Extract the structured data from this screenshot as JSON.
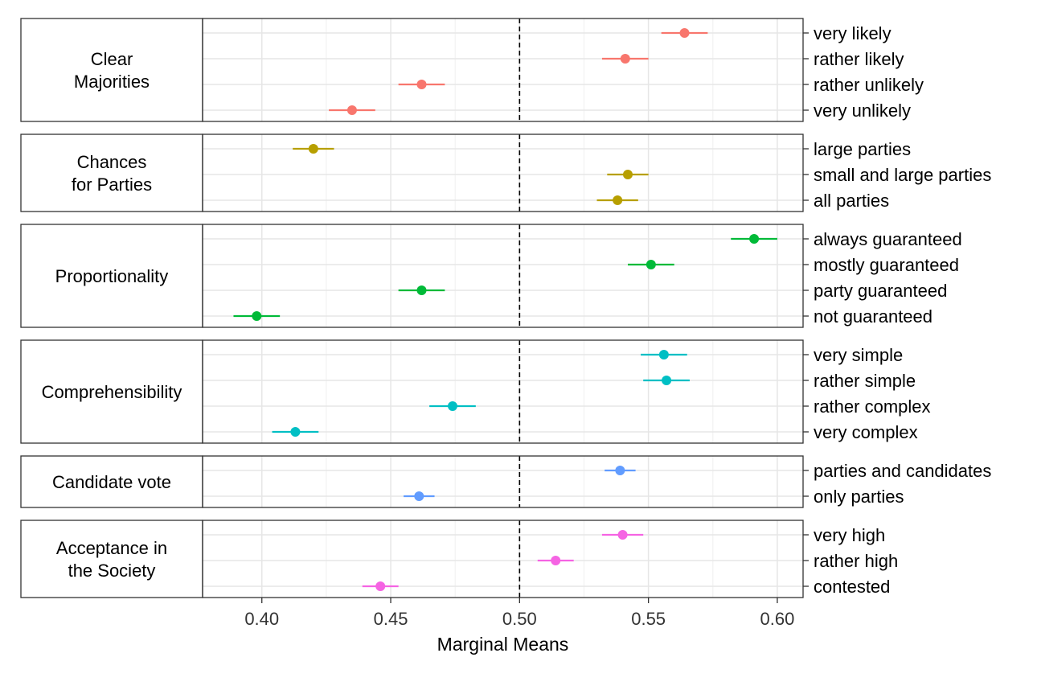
{
  "chart_data": {
    "type": "scatter",
    "subtype": "point-range forest plot, faceted by attribute",
    "xlabel": "Marginal Means",
    "xlim": [
      0.377,
      0.61
    ],
    "x_ticks": [
      0.4,
      0.45,
      0.5,
      0.55,
      0.6
    ],
    "x_tick_labels": [
      "0.40",
      "0.45",
      "0.50",
      "0.55",
      "0.60"
    ],
    "reference_line": {
      "x": 0.5,
      "style": "dashed"
    },
    "grid": true,
    "legend": "none",
    "panels": [
      {
        "label": "Clear Majorities",
        "label_lines": [
          "Clear",
          "Majorities"
        ],
        "color": "#F8766D",
        "levels": [
          {
            "label": "very likely",
            "estimate": 0.564,
            "lower": 0.555,
            "upper": 0.573
          },
          {
            "label": "rather likely",
            "estimate": 0.541,
            "lower": 0.532,
            "upper": 0.55
          },
          {
            "label": "rather unlikely",
            "estimate": 0.462,
            "lower": 0.453,
            "upper": 0.471
          },
          {
            "label": "very unlikely",
            "estimate": 0.435,
            "lower": 0.426,
            "upper": 0.444
          }
        ]
      },
      {
        "label": "Chances for Parties",
        "label_lines": [
          "Chances",
          "for Parties"
        ],
        "color": "#B79F00",
        "levels": [
          {
            "label": "large parties",
            "estimate": 0.42,
            "lower": 0.412,
            "upper": 0.428
          },
          {
            "label": "small and large parties",
            "estimate": 0.542,
            "lower": 0.534,
            "upper": 0.55
          },
          {
            "label": "all parties",
            "estimate": 0.538,
            "lower": 0.53,
            "upper": 0.546
          }
        ]
      },
      {
        "label": "Proportionality",
        "label_lines": [
          "Proportionality"
        ],
        "color": "#00BA38",
        "levels": [
          {
            "label": "always guaranteed",
            "estimate": 0.591,
            "lower": 0.582,
            "upper": 0.6
          },
          {
            "label": "mostly guaranteed",
            "estimate": 0.551,
            "lower": 0.542,
            "upper": 0.56
          },
          {
            "label": "party guaranteed",
            "estimate": 0.462,
            "lower": 0.453,
            "upper": 0.471
          },
          {
            "label": "not guaranteed",
            "estimate": 0.398,
            "lower": 0.389,
            "upper": 0.407
          }
        ]
      },
      {
        "label": "Comprehensibility",
        "label_lines": [
          "Comprehensibility"
        ],
        "color": "#00BFC4",
        "levels": [
          {
            "label": "very simple",
            "estimate": 0.556,
            "lower": 0.547,
            "upper": 0.565
          },
          {
            "label": "rather simple",
            "estimate": 0.557,
            "lower": 0.548,
            "upper": 0.566
          },
          {
            "label": "rather complex",
            "estimate": 0.474,
            "lower": 0.465,
            "upper": 0.483
          },
          {
            "label": "very complex",
            "estimate": 0.413,
            "lower": 0.404,
            "upper": 0.422
          }
        ]
      },
      {
        "label": "Candidate vote",
        "label_lines": [
          "Candidate vote"
        ],
        "color": "#619CFF",
        "levels": [
          {
            "label": "parties and candidates",
            "estimate": 0.539,
            "lower": 0.533,
            "upper": 0.545
          },
          {
            "label": "only parties",
            "estimate": 0.461,
            "lower": 0.455,
            "upper": 0.467
          }
        ]
      },
      {
        "label": "Acceptance in the Society",
        "label_lines": [
          "Acceptance in",
          "the Society"
        ],
        "color": "#F564E3",
        "levels": [
          {
            "label": "very high",
            "estimate": 0.54,
            "lower": 0.532,
            "upper": 0.548
          },
          {
            "label": "rather high",
            "estimate": 0.514,
            "lower": 0.507,
            "upper": 0.521
          },
          {
            "label": "contested",
            "estimate": 0.446,
            "lower": 0.439,
            "upper": 0.453
          }
        ]
      }
    ]
  }
}
